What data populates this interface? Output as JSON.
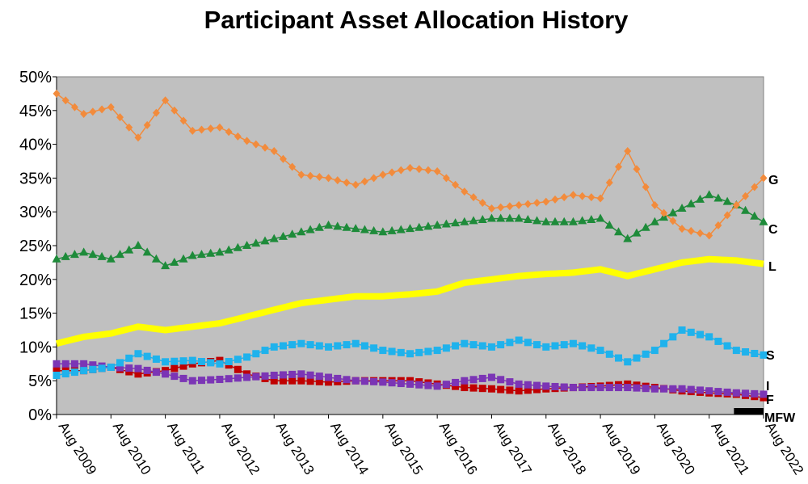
{
  "chart_data": {
    "type": "line",
    "title": "Participant Asset Allocation History",
    "xlabel": "",
    "ylabel": "",
    "ylim": [
      0,
      50
    ],
    "y_unit": "%",
    "y_ticks": [
      "0%",
      "5%",
      "10%",
      "15%",
      "20%",
      "25%",
      "30%",
      "35%",
      "40%",
      "45%",
      "50%"
    ],
    "x_ticks": [
      "Aug 2009",
      "Aug 2010",
      "Aug 2011",
      "Aug 2012",
      "Aug 2013",
      "Aug 2014",
      "Aug 2015",
      "Aug 2016",
      "Aug 2017",
      "Aug 2018",
      "Aug 2019",
      "Aug 2020",
      "Aug 2021",
      "Aug 2022"
    ],
    "x": [
      "Aug 2009",
      "Feb 2010",
      "Aug 2010",
      "Feb 2011",
      "Aug 2011",
      "Feb 2012",
      "Aug 2012",
      "Feb 2013",
      "Aug 2013",
      "Feb 2014",
      "Aug 2014",
      "Feb 2015",
      "Aug 2015",
      "Feb 2016",
      "Aug 2016",
      "Feb 2017",
      "Aug 2017",
      "Feb 2018",
      "Aug 2018",
      "Feb 2019",
      "Aug 2019",
      "Feb 2020",
      "Aug 2020",
      "Feb 2021",
      "Aug 2021",
      "Feb 2022",
      "Aug 2022"
    ],
    "grid": false,
    "plot_background": "#c0c0c0",
    "legend": "right-edge labels",
    "series": [
      {
        "name": "G",
        "color": "#f28b3c",
        "marker": "diamond",
        "values": [
          47.5,
          44.5,
          45.5,
          41.0,
          46.5,
          42.0,
          42.5,
          40.5,
          39.0,
          35.5,
          35.0,
          34.0,
          35.5,
          36.5,
          36.0,
          33.0,
          30.5,
          31.0,
          31.5,
          32.5,
          32.0,
          39.0,
          31.0,
          27.5,
          26.5,
          31.0,
          35.0
        ]
      },
      {
        "name": "C",
        "color": "#1e8b3a",
        "marker": "triangle",
        "values": [
          23.0,
          24.0,
          23.0,
          25.0,
          22.0,
          23.5,
          24.0,
          25.0,
          26.0,
          27.0,
          28.0,
          27.5,
          27.0,
          27.5,
          28.0,
          28.5,
          29.0,
          29.0,
          28.5,
          28.5,
          29.0,
          26.0,
          28.5,
          30.5,
          32.5,
          31.0,
          28.5
        ]
      },
      {
        "name": "L",
        "color": "#ffff00",
        "marker": "dot",
        "values": [
          10.5,
          11.5,
          12.0,
          13.0,
          12.5,
          13.0,
          13.5,
          14.5,
          15.5,
          16.5,
          17.0,
          17.5,
          17.5,
          17.8,
          18.2,
          19.5,
          20.0,
          20.5,
          20.8,
          21.0,
          21.5,
          20.5,
          21.5,
          22.5,
          23.0,
          22.8,
          22.3
        ]
      },
      {
        "name": "S",
        "color": "#1fb2ec",
        "marker": "square",
        "values": [
          5.8,
          6.5,
          7.0,
          9.0,
          7.8,
          8.0,
          7.5,
          8.5,
          10.0,
          10.5,
          10.0,
          10.5,
          9.5,
          9.0,
          9.5,
          10.5,
          10.0,
          11.0,
          10.0,
          10.5,
          9.5,
          7.8,
          9.5,
          12.5,
          11.5,
          9.5,
          8.8
        ]
      },
      {
        "name": "I",
        "color": "#7b35b5",
        "marker": "square",
        "values": [
          7.5,
          7.5,
          7.0,
          6.8,
          6.0,
          5.0,
          5.2,
          5.5,
          5.8,
          6.0,
          5.5,
          5.0,
          4.8,
          4.5,
          4.2,
          5.0,
          5.5,
          4.5,
          4.2,
          4.0,
          4.0,
          4.0,
          3.8,
          3.8,
          3.5,
          3.2,
          3.0
        ]
      },
      {
        "name": "F",
        "color": "#c00000",
        "marker": "square",
        "values": [
          6.5,
          6.5,
          7.0,
          6.0,
          6.5,
          7.5,
          8.0,
          6.0,
          5.0,
          5.0,
          4.8,
          5.0,
          5.0,
          5.0,
          4.5,
          4.0,
          3.8,
          3.5,
          3.8,
          4.0,
          4.2,
          4.5,
          4.0,
          3.5,
          3.2,
          3.0,
          2.5
        ]
      },
      {
        "name": "MFW",
        "color": "#000000",
        "marker": "square",
        "values": [
          null,
          null,
          null,
          null,
          null,
          null,
          null,
          null,
          null,
          null,
          null,
          null,
          null,
          null,
          null,
          null,
          null,
          null,
          null,
          null,
          null,
          null,
          null,
          null,
          null,
          0.05,
          0.1
        ]
      }
    ]
  }
}
